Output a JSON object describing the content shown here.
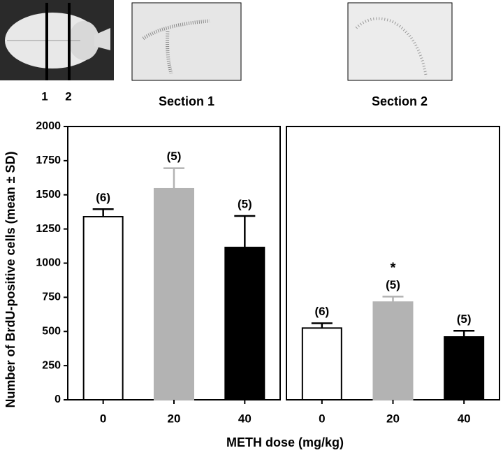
{
  "axis_labels": {
    "y": "Number of BrdU-positive cells (mean ± SD)",
    "x": "METH dose (mg/kg)"
  },
  "brain_image": {
    "section_marks": [
      "1",
      "2"
    ]
  },
  "chart_data": [
    {
      "type": "bar",
      "title": "Section 1",
      "categories": [
        "0",
        "20",
        "40"
      ],
      "values": [
        1340,
        1545,
        1115
      ],
      "errors": [
        55,
        150,
        230
      ],
      "n_labels": [
        "(6)",
        "(5)",
        "(5)"
      ],
      "colors": [
        "#ffffff",
        "#b3b3b3",
        "#000000"
      ],
      "ylim": [
        0,
        2000
      ],
      "yticks": [
        0,
        250,
        500,
        750,
        1000,
        1250,
        1500,
        1750,
        2000
      ]
    },
    {
      "type": "bar",
      "title": "Section 2",
      "categories": [
        "0",
        "20",
        "40"
      ],
      "values": [
        525,
        715,
        460
      ],
      "errors": [
        35,
        40,
        45
      ],
      "n_labels": [
        "(6)",
        "(5)",
        "(5)"
      ],
      "significance": [
        null,
        "*",
        null
      ],
      "colors": [
        "#ffffff",
        "#b3b3b3",
        "#000000"
      ],
      "ylim": [
        0,
        2000
      ]
    }
  ]
}
